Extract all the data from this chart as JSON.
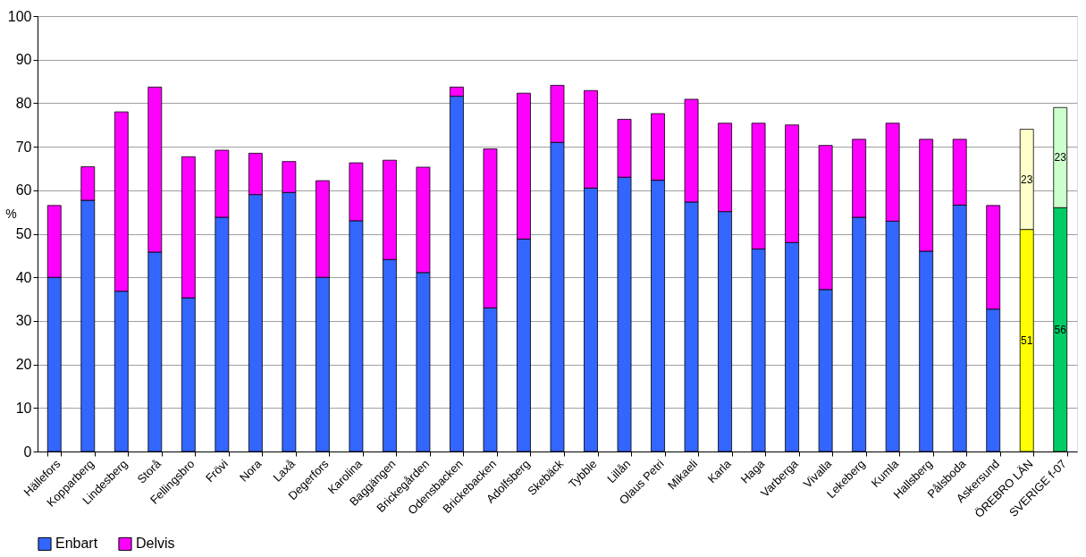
{
  "chart_data": {
    "type": "bar",
    "stacked": true,
    "ylabel": "%",
    "categories": [
      "Hällefors",
      "Kopparberg",
      "Lindesberg",
      "Storå",
      "Fellingsbro",
      "Frövi",
      "Nora",
      "Laxå",
      "Degerfors",
      "Karolina",
      "Baggängen",
      "Brickegården",
      "Odensbacken",
      "Brickebacken",
      "Adolfsberg",
      "Skebäck",
      "Tybble",
      "Lillån",
      "Olaus Petri",
      "Mikaeli",
      "Karla",
      "Haga",
      "Varberga",
      "Vivalla",
      "Lekeberg",
      "Kumla",
      "Hallsberg",
      "Pålsboda",
      "Askersund",
      "ÖREBRO LÄN",
      "SVERIGE f-07"
    ],
    "series": [
      {
        "name": "Enbart",
        "color": "#3366ff",
        "colors": [
          "#3366ff",
          "#3366ff",
          "#3366ff",
          "#3366ff",
          "#3366ff",
          "#3366ff",
          "#3366ff",
          "#3366ff",
          "#3366ff",
          "#3366ff",
          "#3366ff",
          "#3366ff",
          "#3366ff",
          "#3366ff",
          "#3366ff",
          "#3366ff",
          "#3366ff",
          "#3366ff",
          "#3366ff",
          "#3366ff",
          "#3366ff",
          "#3366ff",
          "#3366ff",
          "#3366ff",
          "#3366ff",
          "#3366ff",
          "#3366ff",
          "#3366ff",
          "#3366ff",
          "#ffff00",
          "#00cc66"
        ],
        "values": [
          40,
          57.7,
          36.8,
          45.8,
          35.3,
          53.8,
          59,
          59.5,
          40,
          53,
          44.1,
          41.1,
          81.6,
          33,
          48.8,
          71,
          60.5,
          63,
          62.3,
          57.3,
          55.1,
          46.5,
          48,
          37.2,
          53.8,
          52.9,
          46,
          56.6,
          32.7,
          51,
          56
        ],
        "value_labels": [
          null,
          null,
          null,
          null,
          null,
          null,
          null,
          null,
          null,
          null,
          null,
          null,
          null,
          null,
          null,
          null,
          null,
          null,
          null,
          null,
          null,
          null,
          null,
          null,
          null,
          null,
          null,
          null,
          null,
          "51",
          "56"
        ]
      },
      {
        "name": "Delvis",
        "color": "#ff00ff",
        "colors": [
          "#ff00ff",
          "#ff00ff",
          "#ff00ff",
          "#ff00ff",
          "#ff00ff",
          "#ff00ff",
          "#ff00ff",
          "#ff00ff",
          "#ff00ff",
          "#ff00ff",
          "#ff00ff",
          "#ff00ff",
          "#ff00ff",
          "#ff00ff",
          "#ff00ff",
          "#ff00ff",
          "#ff00ff",
          "#ff00ff",
          "#ff00ff",
          "#ff00ff",
          "#ff00ff",
          "#ff00ff",
          "#ff00ff",
          "#ff00ff",
          "#ff00ff",
          "#ff00ff",
          "#ff00ff",
          "#ff00ff",
          "#ff00ff",
          "#ffffcc",
          "#ccffcc"
        ],
        "values": [
          16.5,
          7.7,
          41.2,
          37.9,
          32.4,
          15.4,
          9.5,
          7.1,
          22.2,
          13.3,
          22.8,
          24.2,
          2.1,
          36.5,
          33.5,
          13.1,
          22.4,
          13.3,
          15.3,
          23.6,
          20.3,
          28.9,
          27,
          33.1,
          17.9,
          22.5,
          25.7,
          15.1,
          23.8,
          23,
          23
        ],
        "value_labels": [
          null,
          null,
          null,
          null,
          null,
          null,
          null,
          null,
          null,
          null,
          null,
          null,
          null,
          null,
          null,
          null,
          null,
          null,
          null,
          null,
          null,
          null,
          null,
          null,
          null,
          null,
          null,
          null,
          null,
          "23",
          "23"
        ]
      }
    ],
    "ylim": [
      0,
      100
    ],
    "yticks": [
      0,
      10,
      20,
      30,
      40,
      50,
      60,
      70,
      80,
      90,
      100
    ],
    "grid": "y",
    "legend": "bottom"
  }
}
